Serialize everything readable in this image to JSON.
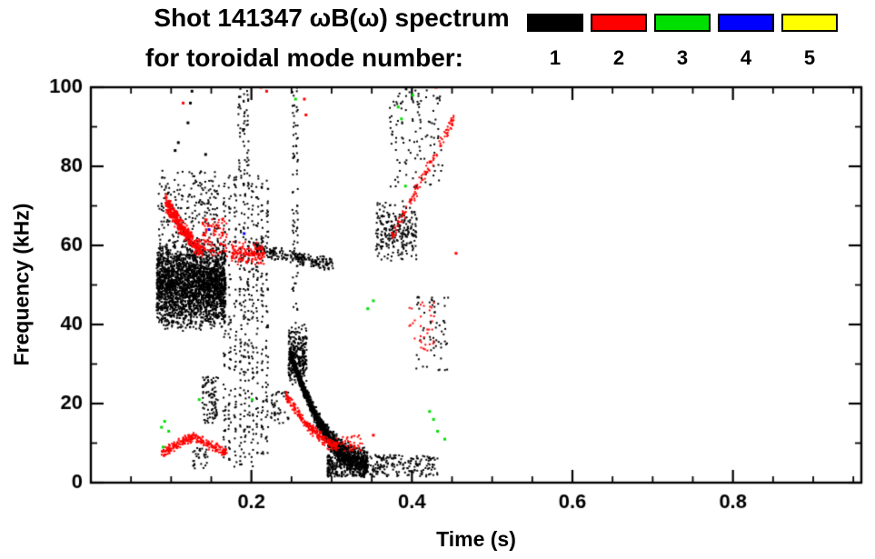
{
  "title": {
    "line1": "Shot 141347 ωB(ω) spectrum",
    "line2": "for toroidal mode number:"
  },
  "legend": [
    {
      "label": "1",
      "color": "#000000"
    },
    {
      "label": "2",
      "color": "#ff0000"
    },
    {
      "label": "3",
      "color": "#00e000"
    },
    {
      "label": "4",
      "color": "#0000ff"
    },
    {
      "label": "5",
      "color": "#ffff00"
    }
  ],
  "chart_data": {
    "type": "scatter",
    "title": "Shot 141347 ωB(ω) spectrum for toroidal mode number:",
    "xlabel": "Time (s)",
    "ylabel": "Frequency (kHz)",
    "xlim": [
      0,
      0.96
    ],
    "ylim": [
      0,
      100
    ],
    "xticks": [
      0.2,
      0.4,
      0.6,
      0.8
    ],
    "yticks": [
      0,
      20,
      40,
      60,
      80,
      100
    ],
    "x_minor_step": 0.05,
    "y_minor_step": 10,
    "grid": false,
    "legend_position": "top-right",
    "modes": [
      {
        "mode": 1,
        "label": "1",
        "color": "#000000"
      },
      {
        "mode": 2,
        "label": "2",
        "color": "#ff0000"
      },
      {
        "mode": 3,
        "label": "3",
        "color": "#00e000"
      },
      {
        "mode": 4,
        "label": "4",
        "color": "#0000ff"
      },
      {
        "mode": 5,
        "label": "5",
        "color": "#ffff00"
      }
    ],
    "clusters": [
      {
        "mode": 1,
        "kind": "blob",
        "t": [
          0.082,
          0.168
        ],
        "f": [
          38,
          62
        ],
        "n": 2600,
        "w": "center"
      },
      {
        "mode": 1,
        "kind": "blob",
        "t": [
          0.084,
          0.16
        ],
        "f": [
          61,
          79
        ],
        "n": 200
      },
      {
        "mode": 1,
        "kind": "dots",
        "pts": [
          [
            0.105,
            84
          ],
          [
            0.109,
            86
          ],
          [
            0.121,
            91
          ],
          [
            0.124,
            96
          ],
          [
            0.126,
            99
          ],
          [
            0.143,
            83
          ]
        ]
      },
      {
        "mode": 1,
        "kind": "vlines",
        "ts": [
          0.1665,
          0.173,
          0.18,
          0.1865,
          0.1915,
          0.1965,
          0.2015,
          0.2075,
          0.2135,
          0.2195
        ],
        "f": [
          4,
          78
        ],
        "n": 55
      },
      {
        "mode": 1,
        "kind": "vlines",
        "ts": [
          0.185,
          0.1905,
          0.1955
        ],
        "f": [
          78,
          100
        ],
        "n": 18
      },
      {
        "mode": 1,
        "kind": "chirp",
        "t": [
          0.205,
          0.302
        ],
        "f": [
          59,
          55
        ],
        "p": 1,
        "n": 230,
        "thick": [
          1.8,
          1.8
        ]
      },
      {
        "mode": 1,
        "kind": "vlines",
        "ts": [
          0.2525,
          0.2565
        ],
        "f": [
          40,
          100
        ],
        "n": 40
      },
      {
        "mode": 1,
        "kind": "blob",
        "t": [
          0.246,
          0.269
        ],
        "f": [
          24,
          40
        ],
        "n": 300,
        "w": "center"
      },
      {
        "mode": 1,
        "kind": "chirp",
        "t": [
          0.248,
          0.345
        ],
        "f": [
          33,
          5
        ],
        "p": 2.1,
        "n": 1500,
        "thick": [
          1.5,
          4.5
        ]
      },
      {
        "mode": 1,
        "kind": "blob",
        "t": [
          0.295,
          0.432
        ],
        "f": [
          1.5,
          7
        ],
        "n": 420,
        "w": "left"
      },
      {
        "mode": 1,
        "kind": "blob",
        "t": [
          0.355,
          0.406
        ],
        "f": [
          55,
          72
        ],
        "n": 240,
        "w": "center"
      },
      {
        "mode": 1,
        "kind": "blob",
        "t": [
          0.372,
          0.438
        ],
        "f": [
          74,
          100
        ],
        "n": 120
      },
      {
        "mode": 1,
        "kind": "blob",
        "t": [
          0.405,
          0.447
        ],
        "f": [
          28,
          47
        ],
        "n": 60
      },
      {
        "mode": 1,
        "kind": "blob",
        "t": [
          0.139,
          0.159
        ],
        "f": [
          15,
          27
        ],
        "n": 90
      },
      {
        "mode": 1,
        "kind": "blob",
        "t": [
          0.224,
          0.247
        ],
        "f": [
          15,
          23
        ],
        "n": 45
      },
      {
        "mode": 1,
        "kind": "blob",
        "t": [
          0.127,
          0.147
        ],
        "f": [
          3.5,
          9
        ],
        "n": 30
      },
      {
        "mode": 2,
        "kind": "chirp",
        "t": [
          0.093,
          0.138
        ],
        "f": [
          71,
          59
        ],
        "p": 1.3,
        "n": 380,
        "thick": [
          2.5,
          2.5
        ]
      },
      {
        "mode": 2,
        "kind": "blob",
        "t": [
          0.138,
          0.17
        ],
        "f": [
          57,
          67
        ],
        "n": 110
      },
      {
        "mode": 2,
        "kind": "blob",
        "t": [
          0.175,
          0.216
        ],
        "f": [
          55,
          61
        ],
        "n": 150,
        "w": "center"
      },
      {
        "mode": 2,
        "kind": "chirp",
        "t": [
          0.088,
          0.126
        ],
        "f": [
          7.5,
          11.5
        ],
        "p": 1,
        "n": 120,
        "thick": [
          1.5,
          1.5
        ]
      },
      {
        "mode": 2,
        "kind": "chirp",
        "t": [
          0.126,
          0.17
        ],
        "f": [
          11.5,
          7.5
        ],
        "p": 1,
        "n": 120,
        "thick": [
          1.5,
          1.5
        ]
      },
      {
        "mode": 2,
        "kind": "chirp",
        "t": [
          0.243,
          0.307
        ],
        "f": [
          22,
          9
        ],
        "p": 1.5,
        "n": 240,
        "thick": [
          1.6,
          1.6
        ]
      },
      {
        "mode": 2,
        "kind": "blob",
        "t": [
          0.305,
          0.338
        ],
        "f": [
          8,
          12
        ],
        "n": 40
      },
      {
        "mode": 2,
        "kind": "chirp",
        "t": [
          0.375,
          0.452
        ],
        "f": [
          62,
          92
        ],
        "p": 1,
        "n": 120,
        "thick": [
          2,
          2
        ]
      },
      {
        "mode": 2,
        "kind": "blob",
        "t": [
          0.396,
          0.428
        ],
        "f": [
          33,
          46
        ],
        "n": 35
      },
      {
        "mode": 2,
        "kind": "dots",
        "pts": [
          [
            0.115,
            96
          ],
          [
            0.212,
            100
          ],
          [
            0.219,
            99
          ],
          [
            0.266,
            97
          ],
          [
            0.268,
            93
          ],
          [
            0.352,
            12
          ],
          [
            0.455,
            58
          ],
          [
            0.43,
            100
          ]
        ]
      },
      {
        "mode": 3,
        "kind": "dots",
        "pts": [
          [
            0.088,
            14
          ],
          [
            0.092,
            15.5
          ],
          [
            0.097,
            13
          ],
          [
            0.09,
            9
          ],
          [
            0.135,
            21
          ],
          [
            0.201,
            21
          ],
          [
            0.255,
            97
          ],
          [
            0.345,
            44
          ],
          [
            0.352,
            46
          ],
          [
            0.383,
            95
          ],
          [
            0.387,
            92
          ],
          [
            0.392,
            75
          ],
          [
            0.401,
            98
          ],
          [
            0.422,
            18
          ],
          [
            0.427,
            16
          ],
          [
            0.432,
            13
          ],
          [
            0.441,
            11
          ]
        ]
      },
      {
        "mode": 4,
        "kind": "dots",
        "pts": [
          [
            0.147,
            64
          ],
          [
            0.191,
            63
          ]
        ]
      }
    ]
  }
}
